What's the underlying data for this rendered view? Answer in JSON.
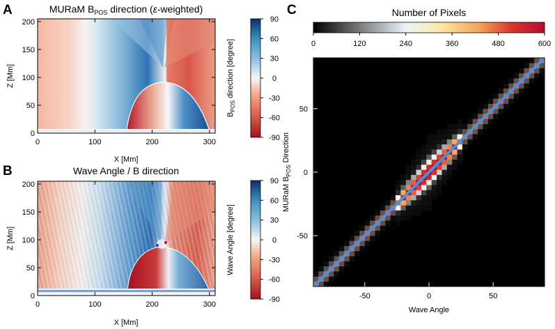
{
  "figure": {
    "panels": [
      {
        "letter": "A",
        "title_main": "MURaM B",
        "title_sub": "POS",
        "title_rest": " direction (",
        "title_eps": "ε",
        "title_end": "-weighted)"
      },
      {
        "letter": "B",
        "title": "Wave Angle / B direction"
      },
      {
        "letter": "C",
        "title": "Number of Pixels"
      }
    ]
  },
  "chart_data": [
    {
      "type": "heatmap",
      "panel": "A",
      "title": "MURaM BPOS direction (ε-weighted)",
      "xlabel": "X [Mm]",
      "ylabel": "Z [Mm]",
      "xlim": [
        0,
        310
      ],
      "ylim": [
        0,
        205
      ],
      "xticks": [
        0,
        100,
        200,
        300
      ],
      "yticks": [
        0,
        50,
        100,
        150,
        200
      ],
      "colorbar": {
        "label_main": "B",
        "label_sub": "POS",
        "label_rest": " direction [degree]",
        "ticks": [
          90,
          60,
          30,
          0,
          -30,
          -60,
          -90
        ],
        "range": [
          -90,
          90
        ],
        "colormap": "red-white-blue"
      },
      "features": {
        "null_point_x": 222,
        "null_point_y": 88,
        "dome_x_range": [
          155,
          295
        ]
      }
    },
    {
      "type": "heatmap",
      "panel": "B",
      "title": "Wave Angle / B direction",
      "xlabel": "X [Mm]",
      "ylabel": "Z [Mm]",
      "xlim": [
        0,
        310
      ],
      "ylim": [
        0,
        205
      ],
      "xticks": [
        0,
        100,
        200,
        300
      ],
      "yticks": [
        0,
        50,
        100,
        150,
        200
      ],
      "colorbar": {
        "label": "Wave Angle [degree]",
        "ticks": [
          90,
          60,
          30,
          0,
          -30,
          -60,
          -90
        ],
        "range": [
          -90,
          90
        ],
        "colormap": "red-white-blue"
      },
      "features": {
        "null_point_x": 222,
        "null_point_y": 88
      }
    },
    {
      "type": "heatmap",
      "panel": "C",
      "title": "Number of Pixels",
      "xlabel": "Wave Angle",
      "ylabel_main": "MURaM B",
      "ylabel_sub": "POS",
      "ylabel_rest": " Direction",
      "xlim": [
        -90,
        90
      ],
      "ylim": [
        -90,
        90
      ],
      "xticks": [
        -50,
        0,
        50
      ],
      "yticks": [
        -50,
        0,
        50
      ],
      "colorbar": {
        "ticks": [
          0,
          120,
          240,
          360,
          480,
          600
        ],
        "range": [
          0,
          600
        ],
        "colormap": "black-gray-white-yellow-red"
      },
      "reference_line": {
        "x": [
          -90,
          90
        ],
        "y": [
          -90,
          90
        ],
        "color": "#4a90e2"
      }
    }
  ]
}
